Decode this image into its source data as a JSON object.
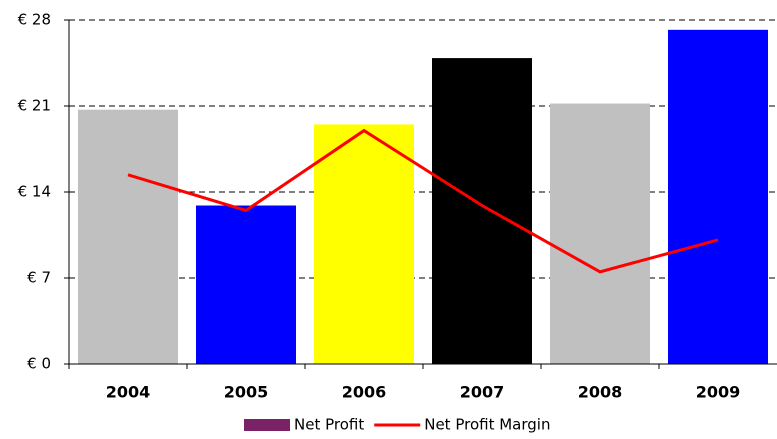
{
  "chart_data": {
    "type": "bar",
    "categories": [
      "2004",
      "2005",
      "2006",
      "2007",
      "2008",
      "2009"
    ],
    "series": [
      {
        "name": "Net Profit",
        "type": "bar",
        "color": "#7b2266",
        "point_colors": [
          "#c0c0c0",
          "#0000ff",
          "#ffff00",
          "#000000",
          "#c0c0c0",
          "#0000ff"
        ],
        "values": [
          20.7,
          12.9,
          19.5,
          24.9,
          21.2,
          27.2
        ]
      },
      {
        "name": "Net Profit Margin",
        "type": "line",
        "color": "#ff0000",
        "values": [
          15.4,
          12.5,
          19.0,
          12.9,
          7.5,
          10.1
        ]
      }
    ],
    "ylim": [
      0,
      28
    ],
    "yticks": [
      {
        "value": 0,
        "label": "€ 0"
      },
      {
        "value": 7,
        "label": "€ 7"
      },
      {
        "value": 14,
        "label": "€ 14"
      },
      {
        "value": 21,
        "label": "€ 21"
      },
      {
        "value": 28,
        "label": "€ 28"
      }
    ],
    "grid": true,
    "legend": "bottom"
  }
}
